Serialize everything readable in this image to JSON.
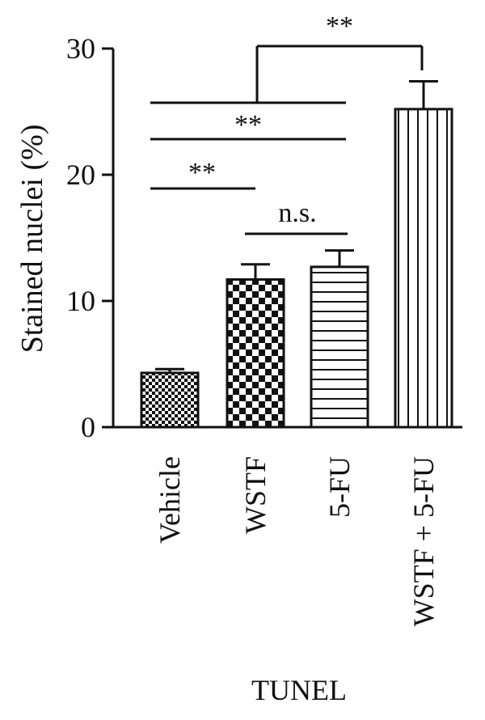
{
  "chart_data": {
    "type": "bar",
    "categories": [
      "Vehicle",
      "WSTF",
      "5-FU",
      "WSTF + 5-FU"
    ],
    "values": [
      4.3,
      11.7,
      12.7,
      25.2
    ],
    "errors": [
      0.3,
      1.2,
      1.3,
      2.2
    ],
    "patterns": [
      "small-checker",
      "large-checker",
      "horizontal-stripes",
      "vertical-stripes"
    ],
    "ylabel": "Stained nuclei (%)",
    "xlabel": "TUNEL",
    "ylim": [
      0,
      30
    ],
    "yticks": [
      0,
      10,
      20,
      30
    ],
    "grid": false,
    "legend": "none",
    "significance": [
      {
        "from": "Vehicle",
        "to": "WSTF",
        "label": "**"
      },
      {
        "from": "Vehicle",
        "to": "5-FU",
        "label": "**"
      },
      {
        "from": "WSTF",
        "to": "5-FU",
        "label": "n.s."
      },
      {
        "from": "Vehicle-to-5-FU",
        "to": "WSTF + 5-FU",
        "label": "**"
      }
    ],
    "colors": {
      "ink": "#111111",
      "background": "#ffffff"
    }
  }
}
